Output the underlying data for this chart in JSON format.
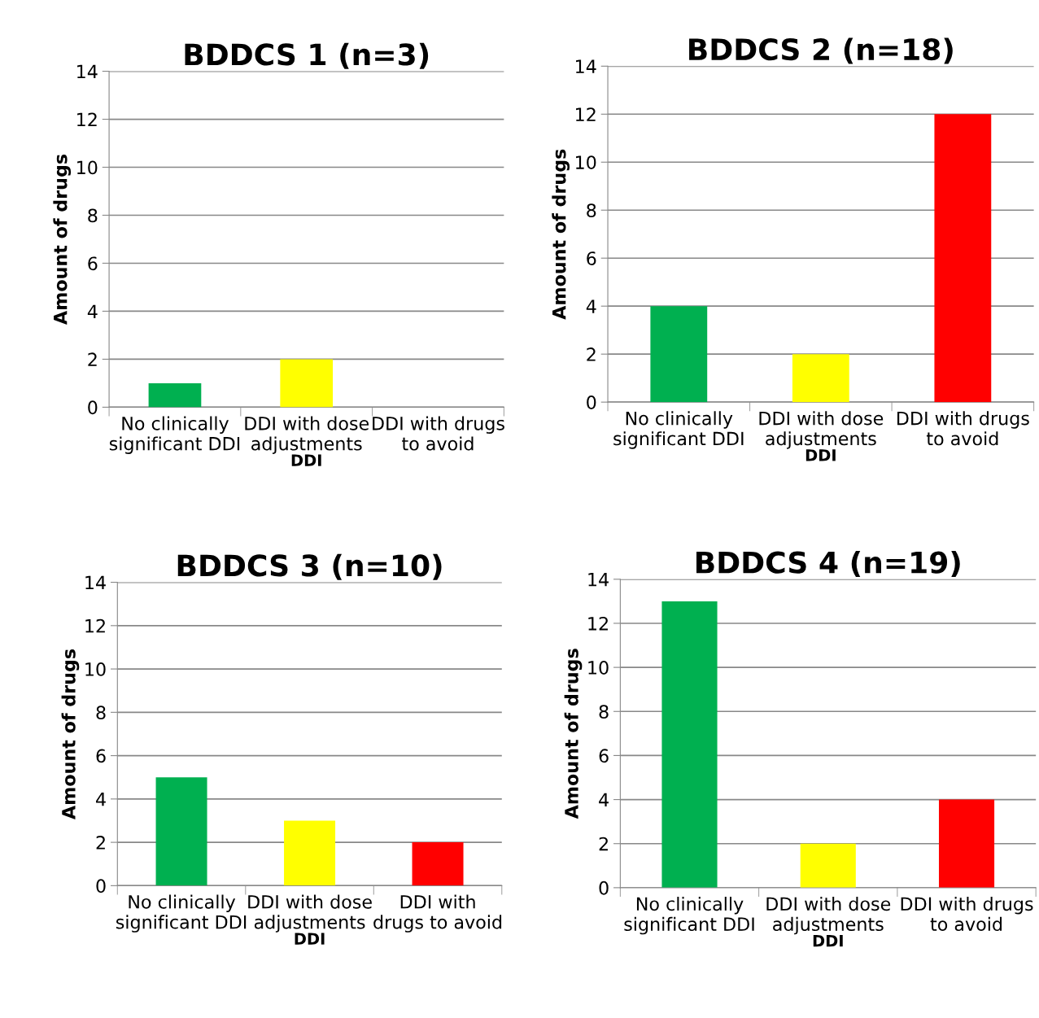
{
  "chart_data": [
    {
      "type": "bar",
      "title": "BDDCS 1 (n=3)",
      "xlabel": "DDI",
      "ylabel": "Amount of drugs",
      "categories": [
        "No clinically\nsignificant DDI",
        "DDI with dose\nadjustments",
        "DDI with drugs\nto avoid"
      ],
      "values": [
        1,
        2,
        0
      ],
      "colors": [
        "#00b050",
        "#ffff00",
        "#ff0000"
      ],
      "ylim": [
        0,
        14
      ],
      "yticks": [
        0,
        2,
        4,
        6,
        8,
        10,
        12,
        14
      ],
      "grid": "y",
      "legend": false
    },
    {
      "type": "bar",
      "title": "BDDCS 2 (n=18)",
      "xlabel": "DDI",
      "ylabel": "Amount of drugs",
      "categories": [
        "No clinically\nsignificant DDI",
        "DDI with dose\nadjustments",
        "DDI with drugs\nto avoid"
      ],
      "values": [
        4,
        2,
        12
      ],
      "colors": [
        "#00b050",
        "#ffff00",
        "#ff0000"
      ],
      "ylim": [
        0,
        14
      ],
      "yticks": [
        0,
        2,
        4,
        6,
        8,
        10,
        12,
        14
      ],
      "grid": "y",
      "legend": false
    },
    {
      "type": "bar",
      "title": "BDDCS 3 (n=10)",
      "xlabel": "DDI",
      "ylabel": "Amount of drugs",
      "categories": [
        "No clinically\nsignificant DDI",
        "DDI with dose\nadjustments",
        "DDI with\ndrugs to avoid"
      ],
      "values": [
        5,
        3,
        2
      ],
      "colors": [
        "#00b050",
        "#ffff00",
        "#ff0000"
      ],
      "ylim": [
        0,
        14
      ],
      "yticks": [
        0,
        2,
        4,
        6,
        8,
        10,
        12,
        14
      ],
      "grid": "y",
      "legend": false
    },
    {
      "type": "bar",
      "title": "BDDCS 4 (n=19)",
      "xlabel": "DDI",
      "ylabel": "Amount of drugs",
      "categories": [
        "No clinically\nsignificant DDI",
        "DDI with dose\nadjustments",
        "DDI with drugs\nto avoid"
      ],
      "values": [
        13,
        2,
        4
      ],
      "colors": [
        "#00b050",
        "#ffff00",
        "#ff0000"
      ],
      "ylim": [
        0,
        14
      ],
      "yticks": [
        0,
        2,
        4,
        6,
        8,
        10,
        12,
        14
      ],
      "grid": "y",
      "legend": false
    }
  ]
}
